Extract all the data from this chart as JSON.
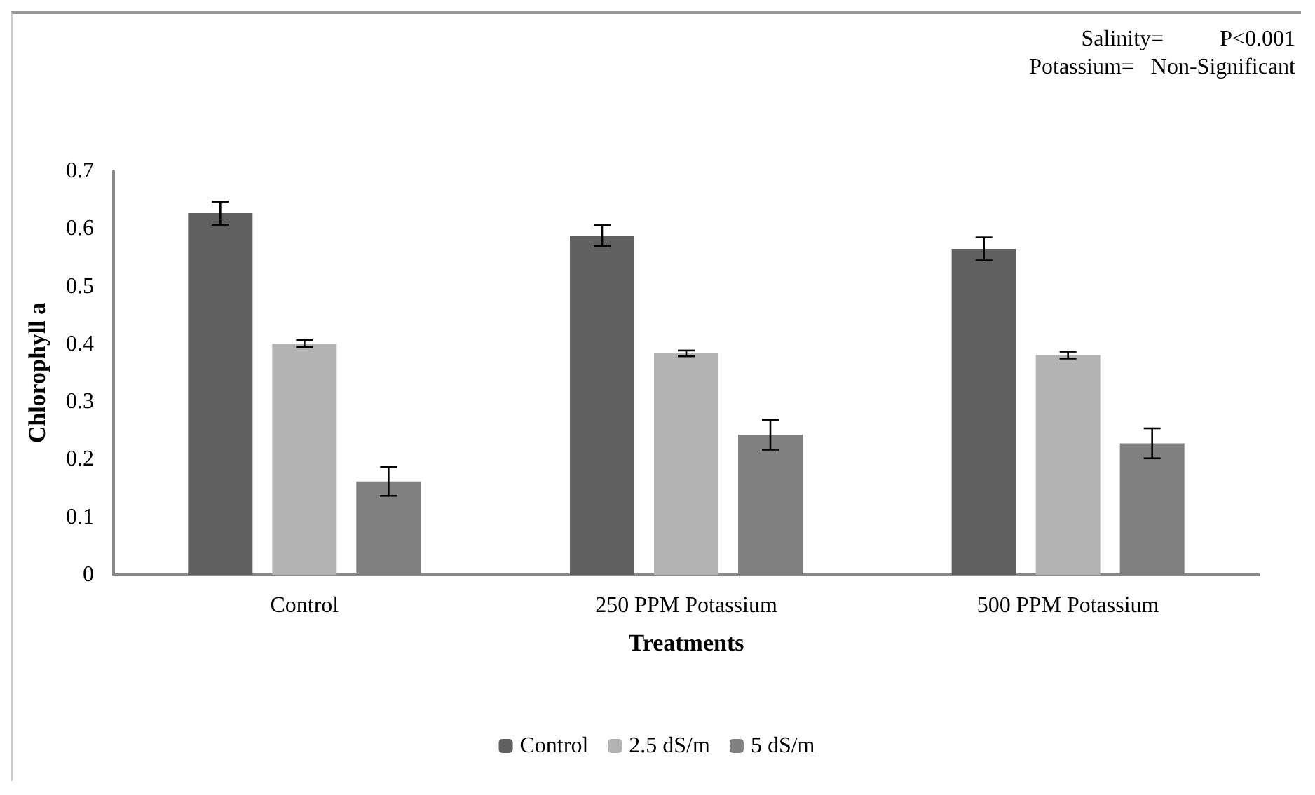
{
  "chart_data": {
    "type": "bar",
    "xlabel": "Treatments",
    "ylabel": "Chlorophyll a",
    "categories": [
      "Control",
      "250 PPM Potassium",
      "500 PPM Potassium"
    ],
    "series": [
      {
        "name": "Control",
        "color": "#606060",
        "values": [
          0.627,
          0.588,
          0.565
        ],
        "errors": [
          0.02,
          0.018,
          0.02
        ]
      },
      {
        "name": "2.5 dS/m",
        "color": "#b3b3b3",
        "values": [
          0.401,
          0.384,
          0.381
        ],
        "errors": [
          0.006,
          0.005,
          0.006
        ]
      },
      {
        "name": "5 dS/m",
        "color": "#808080",
        "values": [
          0.162,
          0.243,
          0.228
        ],
        "errors": [
          0.025,
          0.026,
          0.026
        ]
      }
    ],
    "ylim": [
      0,
      0.7
    ],
    "yticks": [
      0,
      0.1,
      0.2,
      0.3,
      0.4,
      0.5,
      0.6,
      0.7
    ],
    "grid": false,
    "legend": "bottom",
    "annotations": [
      "Salinity=          P<0.001",
      "Potassium=   Non-Significant"
    ]
  }
}
